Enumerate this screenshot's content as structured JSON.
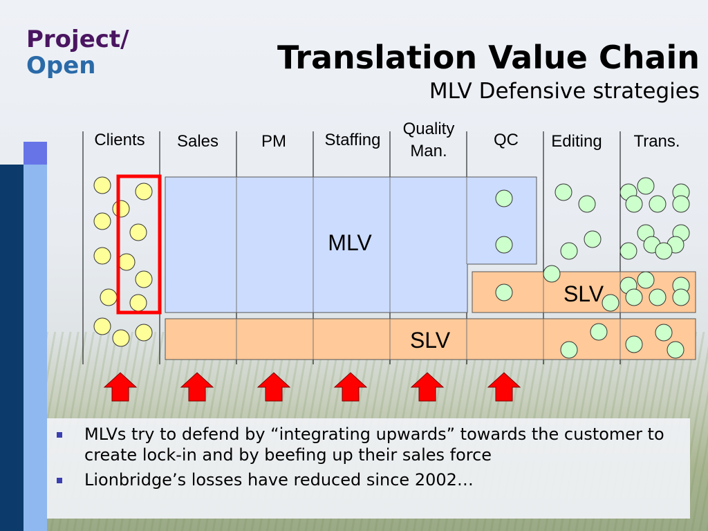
{
  "logo": {
    "line1": "Project/",
    "line2": "Open"
  },
  "title": "Translation Value Chain",
  "subtitle": "MLV Defensive strategies",
  "stages": [
    "Clients",
    "Sales",
    "PM",
    "Staffing",
    "Quality\nMan.",
    "QC",
    "Editing",
    "Trans."
  ],
  "boxes": {
    "mlv_label": "MLV",
    "slv_bottom_label": "SLV",
    "slv_right_label": "SLV"
  },
  "bullets": [
    "MLVs try to defend by “integrating upwards” towards the customer to create lock-in and by beefing up their sales force",
    "Lionbridge’s losses have reduced since 2002…"
  ],
  "colors": {
    "mlv_fill": "#ccdcff",
    "slv_fill": "#ffc999",
    "client_circle": "#ffff99",
    "vendor_circle": "#ccffcc",
    "arrow": "#ff0000",
    "highlight": "#ff0000",
    "logo_purple": "#4a1560",
    "logo_blue": "#2a6aa8"
  },
  "icons": [
    "up-arrow-icon",
    "bullet-square-icon"
  ]
}
